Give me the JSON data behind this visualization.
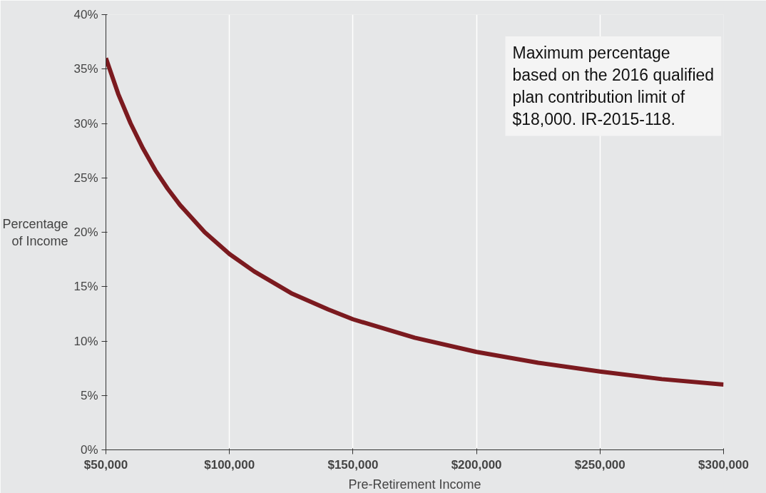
{
  "chart_data": {
    "type": "line",
    "xlabel": "Pre-Retirement Income",
    "ylabel": "Percentage\nof Income",
    "annotations": [
      "Maximum percentage\nbased on the 2016 qualified\nplan contribution limit of\n$18,000. IR-2015-118."
    ],
    "x": [
      50000,
      55000,
      60000,
      65000,
      70000,
      75000,
      80000,
      90000,
      100000,
      110000,
      125000,
      140000,
      150000,
      175000,
      200000,
      225000,
      250000,
      275000,
      300000
    ],
    "series": [
      {
        "color": "#7b1a1f",
        "values": [
          36,
          32.7,
          30,
          27.7,
          25.7,
          24,
          22.5,
          20,
          18,
          16.4,
          14.4,
          12.9,
          12,
          10.3,
          9,
          8,
          7.2,
          6.5,
          6
        ]
      }
    ],
    "xlim": [
      50000,
      300000
    ],
    "ylim": [
      0,
      40
    ],
    "xticks": [
      {
        "value": 50000,
        "label": "$50,000"
      },
      {
        "value": 100000,
        "label": "$100,000"
      },
      {
        "value": 150000,
        "label": "$150,000"
      },
      {
        "value": 200000,
        "label": "$200,000"
      },
      {
        "value": 250000,
        "label": "$250,000"
      },
      {
        "value": 300000,
        "label": "$300,000"
      }
    ],
    "yticks": [
      {
        "value": 0,
        "label": "0%"
      },
      {
        "value": 5,
        "label": "5%"
      },
      {
        "value": 10,
        "label": "10%"
      },
      {
        "value": 15,
        "label": "15%"
      },
      {
        "value": 20,
        "label": "20%"
      },
      {
        "value": 25,
        "label": "25%"
      },
      {
        "value": 30,
        "label": "30%"
      },
      {
        "value": 35,
        "label": "35%"
      },
      {
        "value": 40,
        "label": "40%"
      }
    ],
    "grid": "x",
    "line_style": "solid",
    "marker": "none"
  }
}
